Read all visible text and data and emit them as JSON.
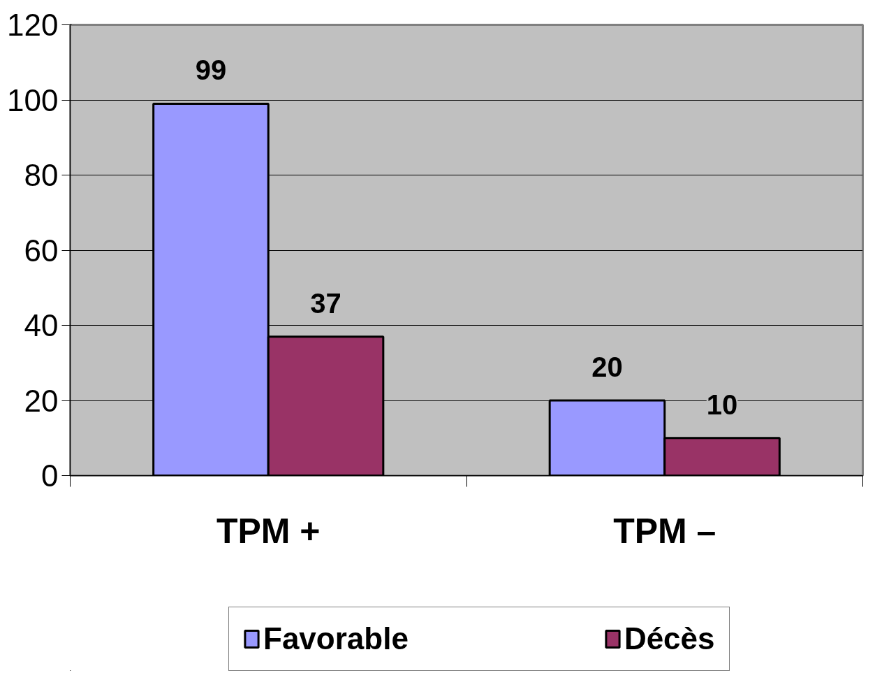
{
  "chart_data": {
    "type": "bar",
    "categories": [
      "TPM +",
      "TPM –"
    ],
    "series": [
      {
        "name": "Favorable",
        "color": "#9999ff",
        "values": [
          99,
          20
        ]
      },
      {
        "name": "Décès",
        "color": "#993366",
        "values": [
          37,
          10
        ]
      }
    ],
    "ylim": [
      0,
      120
    ],
    "yticks": [
      0,
      20,
      40,
      60,
      80,
      100,
      120
    ],
    "grid": "y",
    "legend": "bottom",
    "data_labels": true
  }
}
